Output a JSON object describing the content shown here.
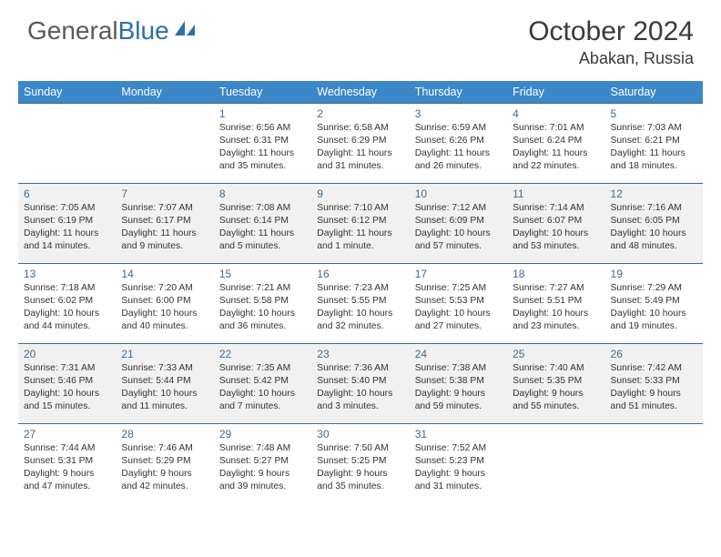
{
  "logo": {
    "part1": "General",
    "part2": "Blue"
  },
  "title": "October 2024",
  "location": "Abakan, Russia",
  "colors": {
    "header_bg": "#3b87c8",
    "header_text": "#ffffff",
    "border": "#3b6b95",
    "daynum": "#3b6b95",
    "alt_row_bg": "#f1f1f1",
    "logo_blue": "#2f6fa8",
    "logo_gray": "#5a5a5a"
  },
  "day_headers": [
    "Sunday",
    "Monday",
    "Tuesday",
    "Wednesday",
    "Thursday",
    "Friday",
    "Saturday"
  ],
  "weeks": [
    [
      null,
      null,
      {
        "n": "1",
        "sr": "6:56 AM",
        "ss": "6:31 PM",
        "dl": "11 hours and 35 minutes."
      },
      {
        "n": "2",
        "sr": "6:58 AM",
        "ss": "6:29 PM",
        "dl": "11 hours and 31 minutes."
      },
      {
        "n": "3",
        "sr": "6:59 AM",
        "ss": "6:26 PM",
        "dl": "11 hours and 26 minutes."
      },
      {
        "n": "4",
        "sr": "7:01 AM",
        "ss": "6:24 PM",
        "dl": "11 hours and 22 minutes."
      },
      {
        "n": "5",
        "sr": "7:03 AM",
        "ss": "6:21 PM",
        "dl": "11 hours and 18 minutes."
      }
    ],
    [
      {
        "n": "6",
        "sr": "7:05 AM",
        "ss": "6:19 PM",
        "dl": "11 hours and 14 minutes."
      },
      {
        "n": "7",
        "sr": "7:07 AM",
        "ss": "6:17 PM",
        "dl": "11 hours and 9 minutes."
      },
      {
        "n": "8",
        "sr": "7:08 AM",
        "ss": "6:14 PM",
        "dl": "11 hours and 5 minutes."
      },
      {
        "n": "9",
        "sr": "7:10 AM",
        "ss": "6:12 PM",
        "dl": "11 hours and 1 minute."
      },
      {
        "n": "10",
        "sr": "7:12 AM",
        "ss": "6:09 PM",
        "dl": "10 hours and 57 minutes."
      },
      {
        "n": "11",
        "sr": "7:14 AM",
        "ss": "6:07 PM",
        "dl": "10 hours and 53 minutes."
      },
      {
        "n": "12",
        "sr": "7:16 AM",
        "ss": "6:05 PM",
        "dl": "10 hours and 48 minutes."
      }
    ],
    [
      {
        "n": "13",
        "sr": "7:18 AM",
        "ss": "6:02 PM",
        "dl": "10 hours and 44 minutes."
      },
      {
        "n": "14",
        "sr": "7:20 AM",
        "ss": "6:00 PM",
        "dl": "10 hours and 40 minutes."
      },
      {
        "n": "15",
        "sr": "7:21 AM",
        "ss": "5:58 PM",
        "dl": "10 hours and 36 minutes."
      },
      {
        "n": "16",
        "sr": "7:23 AM",
        "ss": "5:55 PM",
        "dl": "10 hours and 32 minutes."
      },
      {
        "n": "17",
        "sr": "7:25 AM",
        "ss": "5:53 PM",
        "dl": "10 hours and 27 minutes."
      },
      {
        "n": "18",
        "sr": "7:27 AM",
        "ss": "5:51 PM",
        "dl": "10 hours and 23 minutes."
      },
      {
        "n": "19",
        "sr": "7:29 AM",
        "ss": "5:49 PM",
        "dl": "10 hours and 19 minutes."
      }
    ],
    [
      {
        "n": "20",
        "sr": "7:31 AM",
        "ss": "5:46 PM",
        "dl": "10 hours and 15 minutes."
      },
      {
        "n": "21",
        "sr": "7:33 AM",
        "ss": "5:44 PM",
        "dl": "10 hours and 11 minutes."
      },
      {
        "n": "22",
        "sr": "7:35 AM",
        "ss": "5:42 PM",
        "dl": "10 hours and 7 minutes."
      },
      {
        "n": "23",
        "sr": "7:36 AM",
        "ss": "5:40 PM",
        "dl": "10 hours and 3 minutes."
      },
      {
        "n": "24",
        "sr": "7:38 AM",
        "ss": "5:38 PM",
        "dl": "9 hours and 59 minutes."
      },
      {
        "n": "25",
        "sr": "7:40 AM",
        "ss": "5:35 PM",
        "dl": "9 hours and 55 minutes."
      },
      {
        "n": "26",
        "sr": "7:42 AM",
        "ss": "5:33 PM",
        "dl": "9 hours and 51 minutes."
      }
    ],
    [
      {
        "n": "27",
        "sr": "7:44 AM",
        "ss": "5:31 PM",
        "dl": "9 hours and 47 minutes."
      },
      {
        "n": "28",
        "sr": "7:46 AM",
        "ss": "5:29 PM",
        "dl": "9 hours and 42 minutes."
      },
      {
        "n": "29",
        "sr": "7:48 AM",
        "ss": "5:27 PM",
        "dl": "9 hours and 39 minutes."
      },
      {
        "n": "30",
        "sr": "7:50 AM",
        "ss": "5:25 PM",
        "dl": "9 hours and 35 minutes."
      },
      {
        "n": "31",
        "sr": "7:52 AM",
        "ss": "5:23 PM",
        "dl": "9 hours and 31 minutes."
      },
      null,
      null
    ]
  ],
  "labels": {
    "sunrise": "Sunrise:",
    "sunset": "Sunset:",
    "daylight": "Daylight:"
  }
}
